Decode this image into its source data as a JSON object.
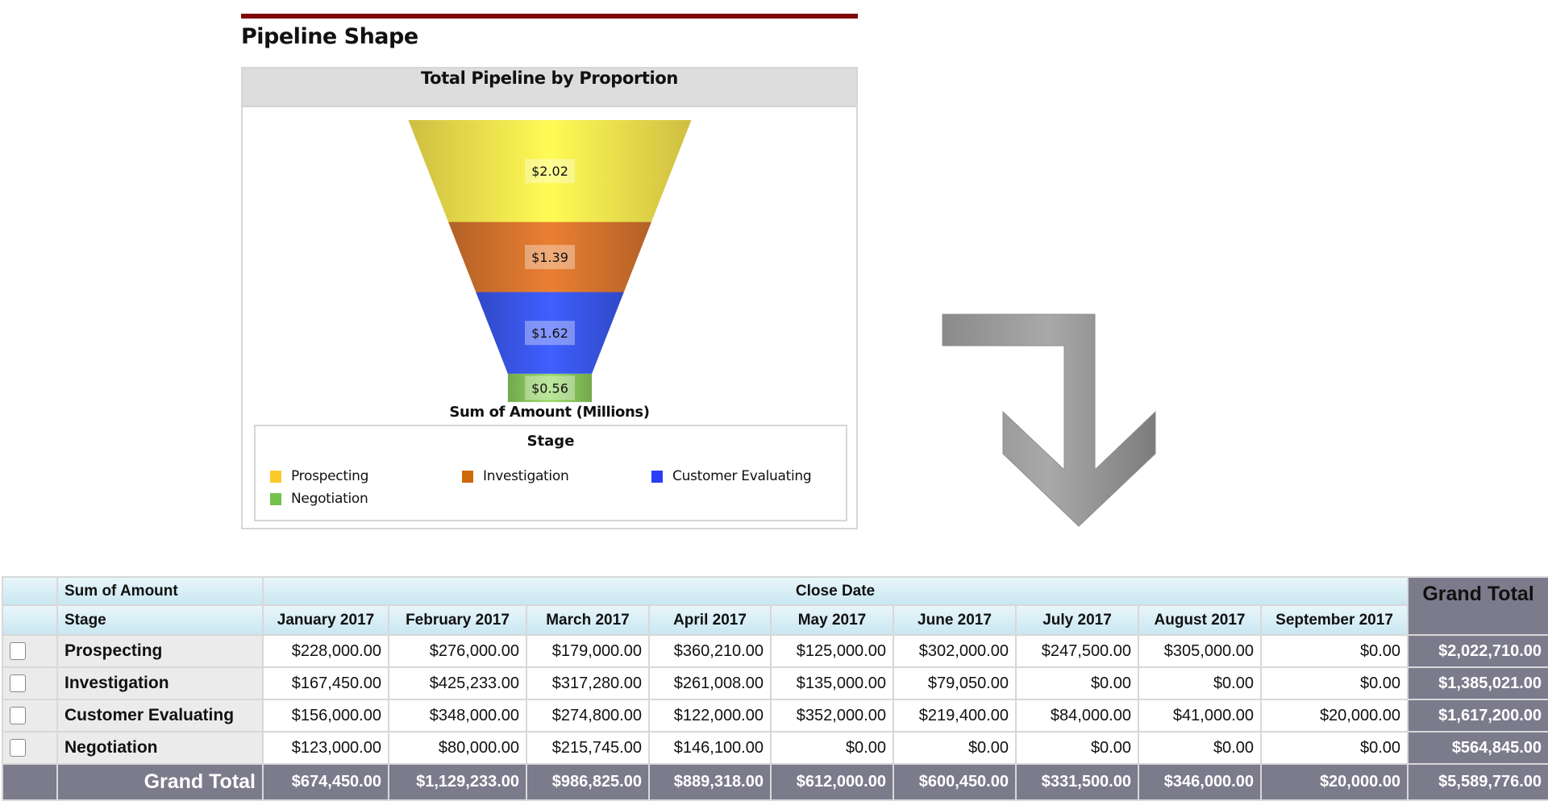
{
  "section_title": "Pipeline Shape",
  "chart_data": {
    "type": "funnel",
    "title": "Total Pipeline by Proportion",
    "xlabel": "Sum of Amount (Millions)",
    "legend_title": "Stage",
    "legend_placement": "bottom",
    "categories": [
      "Prospecting",
      "Investigation",
      "Customer Evaluating",
      "Negotiation"
    ],
    "values": [
      2.02,
      1.39,
      1.62,
      0.56
    ],
    "labels": [
      "$2.02",
      "$1.39",
      "$1.62",
      "$0.56"
    ],
    "colors": [
      "#fde84f",
      "#d9762e",
      "#3a58f2",
      "#8ccc5e"
    ],
    "legend_colors": [
      "#fbca2a",
      "#cc6a0a",
      "#2b3cf5",
      "#72c24c"
    ]
  },
  "arrow": {
    "icon": "down-right-turn-arrow-icon",
    "color": "#999999"
  },
  "table": {
    "corner_label": "Sum of Amount",
    "row_header": "Stage",
    "column_group": "Close Date",
    "grand_total_label": "Grand Total",
    "columns": [
      "January 2017",
      "February 2017",
      "March 2017",
      "April 2017",
      "May 2017",
      "June 2017",
      "July 2017",
      "August 2017",
      "September 2017"
    ],
    "rows": [
      {
        "stage": "Prospecting",
        "values": [
          "$228,000.00",
          "$276,000.00",
          "$179,000.00",
          "$360,210.00",
          "$125,000.00",
          "$302,000.00",
          "$247,500.00",
          "$305,000.00",
          "$0.00"
        ],
        "total": "$2,022,710.00"
      },
      {
        "stage": "Investigation",
        "values": [
          "$167,450.00",
          "$425,233.00",
          "$317,280.00",
          "$261,008.00",
          "$135,000.00",
          "$79,050.00",
          "$0.00",
          "$0.00",
          "$0.00"
        ],
        "total": "$1,385,021.00"
      },
      {
        "stage": "Customer Evaluating",
        "values": [
          "$156,000.00",
          "$348,000.00",
          "$274,800.00",
          "$122,000.00",
          "$352,000.00",
          "$219,400.00",
          "$84,000.00",
          "$41,000.00",
          "$20,000.00"
        ],
        "total": "$1,617,200.00"
      },
      {
        "stage": "Negotiation",
        "values": [
          "$123,000.00",
          "$80,000.00",
          "$215,745.00",
          "$146,100.00",
          "$0.00",
          "$0.00",
          "$0.00",
          "$0.00",
          "$0.00"
        ],
        "total": "$564,845.00"
      }
    ],
    "grand_totals": [
      "$674,450.00",
      "$1,129,233.00",
      "$986,825.00",
      "$889,318.00",
      "$612,000.00",
      "$600,450.00",
      "$331,500.00",
      "$346,000.00",
      "$20,000.00"
    ],
    "grand_total_all": "$5,589,776.00"
  }
}
